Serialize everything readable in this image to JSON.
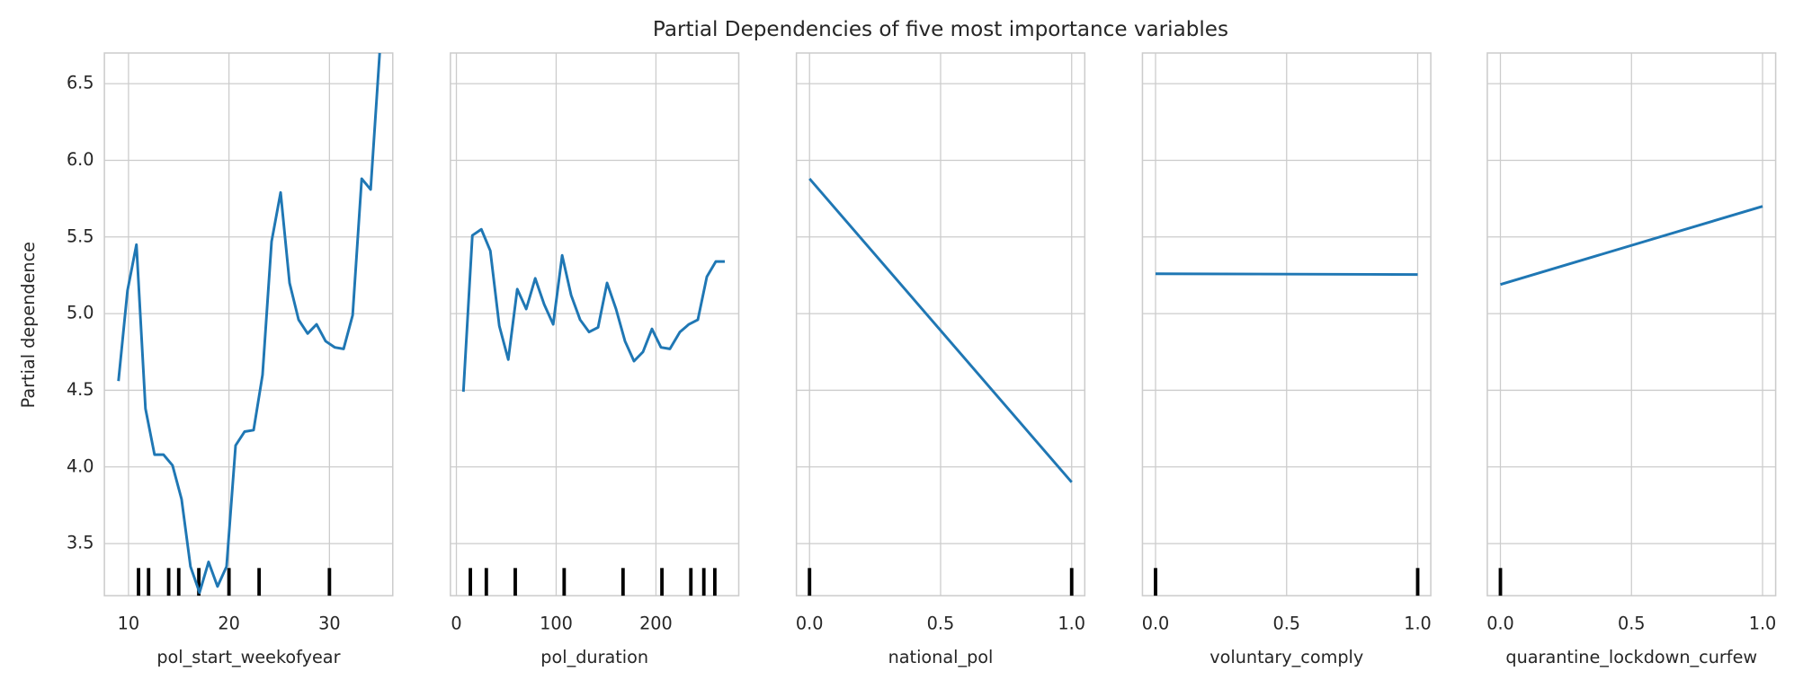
{
  "chart_data": {
    "type": "line",
    "title": "Partial Dependencies of five most importance variables",
    "ylabel": "Partial dependence",
    "color": "#1f77b4",
    "grid": true,
    "ylim": [
      3.16,
      6.7
    ],
    "yticks": [
      3.5,
      {
        "value": 4,
        "label": "4.0"
      },
      4.5,
      {
        "value": 5,
        "label": "5.0"
      },
      5.5,
      {
        "value": 6,
        "label": "6.0"
      },
      6.5
    ],
    "panels": [
      {
        "xlabel": "pol_start_weekofyear",
        "xlim": [
          7.6,
          36.3
        ],
        "xticks": [
          10,
          20,
          30
        ],
        "x": [
          9,
          9.9,
          10.79,
          11.69,
          12.59,
          13.48,
          14.38,
          15.28,
          16.17,
          17.07,
          17.97,
          18.86,
          19.76,
          20.66,
          21.55,
          22.45,
          23.34,
          24.24,
          25.14,
          26.03,
          26.93,
          27.83,
          28.72,
          29.62,
          30.52,
          31.41,
          32.31,
          33.21,
          34.1,
          35
        ],
        "values": [
          4.56,
          5.15,
          5.45,
          4.38,
          4.08,
          4.08,
          4.01,
          3.79,
          3.35,
          3.18,
          3.38,
          3.22,
          3.35,
          4.14,
          4.23,
          4.24,
          4.6,
          5.47,
          5.79,
          5.2,
          4.96,
          4.87,
          4.93,
          4.82,
          4.78,
          4.77,
          4.99,
          5.88,
          5.81,
          6.7
        ],
        "rug": [
          11,
          12,
          14,
          15,
          17,
          20,
          23,
          30
        ]
      },
      {
        "xlabel": "pol_duration",
        "xlim": [
          -6,
          283
        ],
        "xticks": [
          0,
          100,
          200
        ],
        "x": [
          7,
          16,
          25,
          34,
          43,
          52,
          61,
          70,
          79,
          88,
          97,
          106,
          115,
          124,
          133,
          142,
          151,
          160,
          169,
          178,
          187,
          196,
          205,
          214,
          224,
          233,
          242,
          251,
          260,
          269
        ],
        "values": [
          4.49,
          5.51,
          5.55,
          5.41,
          4.92,
          4.7,
          5.16,
          5.03,
          5.23,
          5.06,
          4.93,
          5.38,
          5.12,
          4.96,
          4.88,
          4.91,
          5.2,
          5.03,
          4.82,
          4.69,
          4.75,
          4.9,
          4.78,
          4.77,
          4.88,
          4.93,
          4.96,
          5.24,
          5.34,
          5.34
        ],
        "rug": [
          14,
          30,
          59,
          108,
          167,
          206,
          235,
          248,
          259
        ]
      },
      {
        "xlabel": "national_pol",
        "xlim": [
          -0.05,
          1.05
        ],
        "xticks": [
          {
            "value": 0,
            "label": "0.0"
          },
          0.5,
          {
            "value": 1,
            "label": "1.0"
          }
        ],
        "x": [
          0,
          1
        ],
        "values": [
          5.88,
          3.9
        ],
        "rug": [
          0,
          1
        ]
      },
      {
        "xlabel": "voluntary_comply",
        "xlim": [
          -0.05,
          1.05
        ],
        "xticks": [
          {
            "value": 0,
            "label": "0.0"
          },
          0.5,
          {
            "value": 1,
            "label": "1.0"
          }
        ],
        "x": [
          0,
          1
        ],
        "values": [
          5.26,
          5.255
        ],
        "rug": [
          0,
          1
        ]
      },
      {
        "xlabel": "quarantine_lockdown_curfew",
        "xlim": [
          -0.05,
          1.05
        ],
        "xticks": [
          {
            "value": 0,
            "label": "0.0"
          },
          0.5,
          {
            "value": 1,
            "label": "1.0"
          }
        ],
        "x": [
          0,
          1
        ],
        "values": [
          5.19,
          5.7
        ],
        "rug": [
          0
        ]
      }
    ]
  }
}
